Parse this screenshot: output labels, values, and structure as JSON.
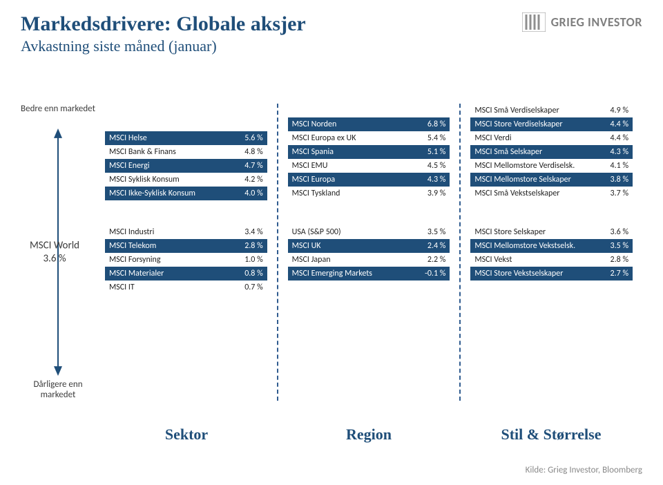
{
  "colors": {
    "brand_blue": "#1f4e79",
    "row_dark_bg": "#1f4e79",
    "row_dark_fg": "#ffffff",
    "row_light_bg": "#ffffff",
    "row_light_fg": "#222222",
    "divider_dash": "#2f5b8f",
    "muted_text": "#7f7f7f",
    "source_text": "#8a8a8a"
  },
  "header": {
    "title": "Markedsdrivere: Globale aksjer",
    "subtitle": "Avkastning siste måned (januar)",
    "brand": "GRIEG INVESTOR"
  },
  "y_axis": {
    "top_label": "Bedre enn markedet",
    "bottom_label": "Dårligere enn markedet",
    "center_label": "MSCI World",
    "center_value": "3.6 %"
  },
  "columns": [
    {
      "x_label": "Sektor",
      "upper": [
        null,
        null,
        {
          "label": "MSCI Helse",
          "value": "5.6 %",
          "style": "dark"
        },
        {
          "label": "MSCI Bank & Finans",
          "value": "4.8 %",
          "style": "light"
        },
        {
          "label": "MSCI Energi",
          "value": "4.7 %",
          "style": "dark"
        },
        {
          "label": "MSCI Syklisk Konsum",
          "value": "4.2 %",
          "style": "light"
        },
        {
          "label": "MSCI Ikke-Syklisk Konsum",
          "value": "4.0 %",
          "style": "dark"
        }
      ],
      "lower": [
        {
          "label": "MSCI Industri",
          "value": "3.4 %",
          "style": "light"
        },
        {
          "label": "MSCI Telekom",
          "value": "2.8 %",
          "style": "dark"
        },
        {
          "label": "MSCI Forsyning",
          "value": "1.0 %",
          "style": "light"
        },
        {
          "label": "MSCI Materialer",
          "value": "0.8 %",
          "style": "dark"
        },
        {
          "label": "MSCI IT",
          "value": "0.7 %",
          "style": "light"
        }
      ]
    },
    {
      "x_label": "Region",
      "upper": [
        null,
        {
          "label": "MSCI Norden",
          "value": "6.8 %",
          "style": "dark"
        },
        {
          "label": "MSCI Europa ex UK",
          "value": "5.4 %",
          "style": "light"
        },
        {
          "label": "MSCI Spania",
          "value": "5.1 %",
          "style": "dark"
        },
        {
          "label": "MSCI EMU",
          "value": "4.5 %",
          "style": "light"
        },
        {
          "label": "MSCI Europa",
          "value": "4.3 %",
          "style": "dark"
        },
        {
          "label": "MSCI Tyskland",
          "value": "3.9 %",
          "style": "light"
        }
      ],
      "lower": [
        {
          "label": "USA (S&P 500)",
          "value": "3.5 %",
          "style": "light"
        },
        {
          "label": "MSCI UK",
          "value": "2.4 %",
          "style": "dark"
        },
        {
          "label": "MSCI Japan",
          "value": "2.2 %",
          "style": "light"
        },
        {
          "label": "MSCI Emerging Markets",
          "value": "-0.1 %",
          "style": "dark"
        },
        null
      ]
    },
    {
      "x_label": "Stil & Størrelse",
      "upper": [
        {
          "label": "MSCI Små Verdiselskaper",
          "value": "4.9 %",
          "style": "light"
        },
        {
          "label": "MSCI Store Verdiselskaper",
          "value": "4.4 %",
          "style": "dark"
        },
        {
          "label": "MSCI Verdi",
          "value": "4.4 %",
          "style": "light"
        },
        {
          "label": "MSCI Små Selskaper",
          "value": "4.3 %",
          "style": "dark"
        },
        {
          "label": "MSCI Mellomstore Verdiselsk.",
          "value": "4.1 %",
          "style": "light"
        },
        {
          "label": "MSCI Mellomstore Selskaper",
          "value": "3.8 %",
          "style": "dark"
        },
        {
          "label": "MSCI Små Vekstselskaper",
          "value": "3.7 %",
          "style": "light"
        }
      ],
      "lower": [
        {
          "label": "MSCI Store Selskaper",
          "value": "3.6 %",
          "style": "light"
        },
        {
          "label": "MSCI Mellomstore Vekstselsk.",
          "value": "3.5 %",
          "style": "dark"
        },
        {
          "label": "MSCI Vekst",
          "value": "2.8 %",
          "style": "light"
        },
        {
          "label": "MSCI Store Vekstselskaper",
          "value": "2.7 %",
          "style": "dark"
        },
        null
      ]
    }
  ],
  "source": "Kilde: Grieg Investor, Bloomberg"
}
